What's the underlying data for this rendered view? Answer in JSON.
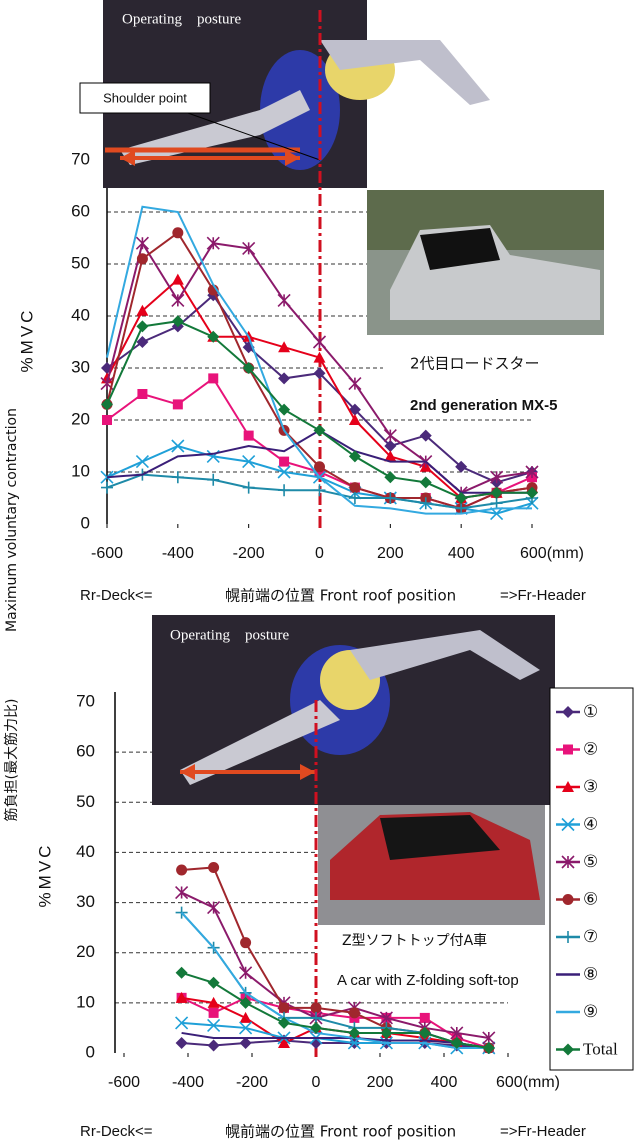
{
  "chart_data": [
    {
      "type": "line",
      "axis_title": "%MVC",
      "side_label": "Maximum voluntary contraction",
      "photo_title": "Operating　posture",
      "callout": "Shoulder point",
      "caption_jp": "2代目ロードスター",
      "caption_en": "2nd generation MX-5",
      "x_label_left": "Rr-Deck<=",
      "x_label": "幌前端の位置 Front roof position",
      "x_label_right": "=>Fr-Header",
      "x": [
        -600,
        -500,
        -400,
        -300,
        -200,
        -100,
        0,
        100,
        200,
        300,
        400,
        500,
        600
      ],
      "xlim": [
        -600,
        600
      ],
      "xticks": [
        -600,
        -400,
        -200,
        0,
        200,
        400,
        {
          "value": 600,
          "label": "600(mm)"
        }
      ],
      "ylim": [
        0,
        70
      ],
      "yticks": [
        0,
        10,
        20,
        30,
        40,
        50,
        60,
        70
      ],
      "grid": true,
      "series": [
        {
          "color": "#4b2a7a",
          "marker": "diamond",
          "values": [
            30,
            35,
            38,
            44,
            34,
            28,
            29,
            22,
            15,
            17,
            11,
            8,
            10
          ]
        },
        {
          "color": "#e8137a",
          "marker": "square",
          "values": [
            20,
            25,
            23,
            28,
            17,
            12,
            10,
            7,
            5,
            5,
            3,
            6,
            9
          ]
        },
        {
          "color": "#e5001a",
          "marker": "triangle",
          "values": [
            28,
            41,
            47,
            36,
            36,
            34,
            32,
            20,
            13,
            11,
            5,
            6,
            7
          ]
        },
        {
          "color": "#1fa0d8",
          "marker": "x",
          "values": [
            9,
            12,
            15,
            13,
            12,
            10,
            9,
            6,
            5,
            4,
            3,
            2,
            4
          ]
        },
        {
          "color": "#8b1a6b",
          "marker": "asterisk",
          "values": [
            27,
            54,
            43,
            54,
            53,
            43,
            35,
            27,
            17,
            12,
            6,
            9,
            10
          ]
        },
        {
          "color": "#a0272d",
          "marker": "circle",
          "values": [
            23,
            51,
            56,
            45,
            30,
            18,
            11,
            7,
            5,
            5,
            3,
            6,
            7
          ]
        },
        {
          "color": "#1e8aa8",
          "marker": "plus",
          "values": [
            7,
            9.5,
            9,
            8.5,
            7,
            6.5,
            6.5,
            5,
            5,
            4,
            3,
            4,
            5
          ]
        },
        {
          "color": "#3a1f78",
          "marker": "none",
          "values": [
            9,
            9.5,
            13,
            13.5,
            15,
            14,
            18,
            14,
            12,
            12,
            6,
            6,
            6
          ]
        },
        {
          "color": "#33a9e0",
          "marker": "none",
          "values": [
            32,
            61,
            60,
            46,
            36,
            18,
            9,
            3.5,
            3,
            2,
            2,
            3,
            3
          ]
        },
        {
          "color": "#13793a",
          "marker": "diamond",
          "values": [
            23,
            38,
            39,
            36,
            30,
            22,
            18,
            13,
            9,
            8,
            5,
            6,
            6
          ]
        }
      ]
    },
    {
      "type": "line",
      "axis_title": "%MVC",
      "side_label": "筋負担(最大筋力比)",
      "photo_title": "Operating　posture",
      "caption_jp": "Z型ソフトトップ付A車",
      "caption_en": "A car with Z-folding soft-top",
      "x_label_left": "Rr-Deck<=",
      "x_label": "幌前端の位置 Front roof position",
      "x_label_right": "=>Fr-Header",
      "x": [
        -420,
        -320,
        -220,
        -100,
        0,
        120,
        220,
        340,
        440,
        540
      ],
      "xlim": [
        -600,
        600
      ],
      "xticks": [
        -600,
        -400,
        -200,
        0,
        200,
        400,
        {
          "value": 600,
          "label": "600(mm)"
        }
      ],
      "ylim": [
        0,
        70
      ],
      "yticks": [
        0,
        10,
        20,
        30,
        40,
        50,
        60,
        70
      ],
      "grid": true,
      "legend": "right",
      "series": [
        {
          "name": "①",
          "color": "#4b2a7a",
          "marker": "diamond",
          "values": [
            2,
            1.5,
            2,
            2.5,
            2,
            2,
            2,
            2,
            1.5,
            1
          ]
        },
        {
          "name": "②",
          "color": "#e8137a",
          "marker": "square",
          "values": [
            11,
            8,
            11,
            9,
            8,
            7,
            7,
            7,
            3,
            1
          ]
        },
        {
          "name": "③",
          "color": "#e5001a",
          "marker": "triangle",
          "values": [
            11,
            10,
            7,
            2,
            5,
            4,
            4,
            3,
            2,
            1
          ]
        },
        {
          "name": "④",
          "color": "#1fa0d8",
          "marker": "x",
          "values": [
            6,
            5.5,
            5,
            3,
            3,
            2,
            2,
            2,
            1,
            1
          ]
        },
        {
          "name": "⑤",
          "color": "#8b1a6b",
          "marker": "asterisk",
          "values": [
            32,
            29,
            16,
            10,
            7,
            9,
            7,
            5,
            4,
            3
          ]
        },
        {
          "name": "⑥",
          "color": "#a0272d",
          "marker": "circle",
          "values": [
            36.5,
            37,
            22,
            9,
            9,
            8,
            5,
            4,
            2,
            1
          ]
        },
        {
          "name": "⑦",
          "color": "#1e8aa8",
          "marker": "plus",
          "values": [
            28,
            21,
            12,
            7,
            7,
            5,
            5,
            4,
            2,
            1
          ]
        },
        {
          "name": "⑧",
          "color": "#3a1f78",
          "marker": "none",
          "values": [
            4,
            3,
            3,
            3,
            3,
            3,
            2.5,
            2.5,
            2,
            1
          ]
        },
        {
          "name": "⑨",
          "color": "#33a9e0",
          "marker": "none",
          "values": [
            28,
            21,
            12,
            7,
            4,
            3,
            2,
            2,
            1,
            1
          ]
        },
        {
          "name": "Total",
          "color": "#13793a",
          "marker": "diamond",
          "values": [
            16,
            14,
            10,
            6,
            5,
            4,
            4,
            4,
            2,
            1
          ]
        }
      ]
    }
  ]
}
